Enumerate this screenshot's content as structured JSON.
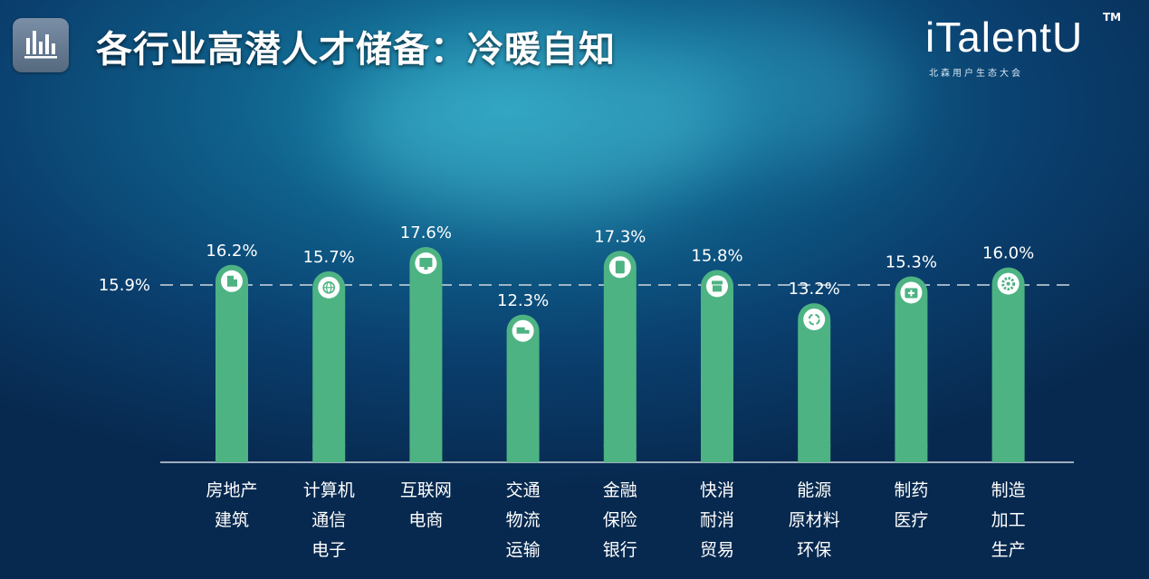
{
  "header": {
    "title": "各行业高潜人才储备：冷暖自知",
    "brand_name": "iTalentU",
    "brand_tm": "TM",
    "brand_sub": "北森用户生态大会"
  },
  "icons": {
    "corner": "bar-chart-icon",
    "categories": [
      "building-icon",
      "globe-icon",
      "monitor-chart-icon",
      "truck-icon",
      "money-icon",
      "shop-icon",
      "recycle-icon",
      "medical-kit-icon",
      "gear-icon"
    ]
  },
  "colors": {
    "bar": "#4db383",
    "icon_fill": "#ffffff",
    "reference_line": "#cfd8e0",
    "axis": "#cfd8e0"
  },
  "chart_data": {
    "type": "bar",
    "categories": [
      [
        "房地产",
        "建筑"
      ],
      [
        "计算机",
        "通信",
        "电子"
      ],
      [
        "互联网",
        "电商"
      ],
      [
        "交通",
        "物流",
        "运输"
      ],
      [
        "金融",
        "保险",
        "银行"
      ],
      [
        "快消",
        "耐消",
        "贸易"
      ],
      [
        "能源",
        "原材料",
        "环保"
      ],
      [
        "制药",
        "医疗"
      ],
      [
        "制造",
        "加工",
        "生产"
      ]
    ],
    "values": [
      16.2,
      15.7,
      17.6,
      12.3,
      17.3,
      15.8,
      13.2,
      15.3,
      16.0
    ],
    "value_labels": [
      "16.2%",
      "15.7%",
      "17.6%",
      "12.3%",
      "17.3%",
      "15.8%",
      "13.2%",
      "15.3%",
      "16.0%"
    ],
    "reference": {
      "value": 15.9,
      "label": "15.9%",
      "style": "dashed"
    },
    "grid": false,
    "legend": "none"
  }
}
